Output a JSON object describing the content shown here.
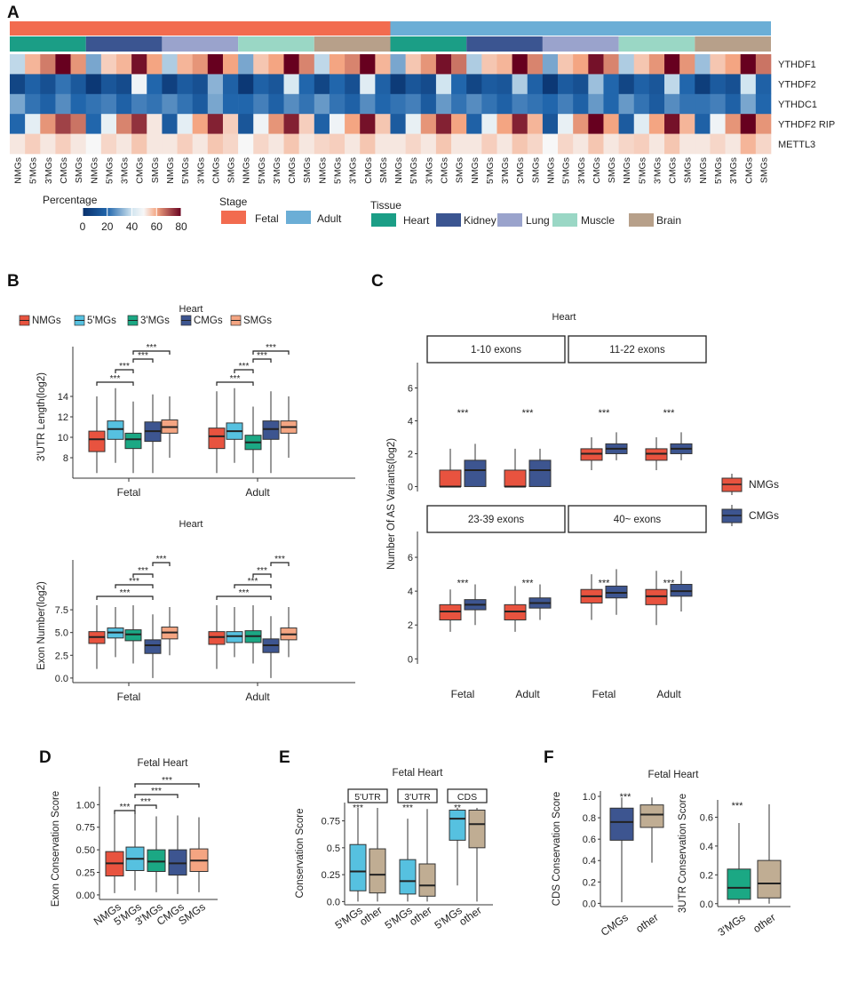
{
  "colors": {
    "fetal": "#f26b4f",
    "adult": "#6baed6",
    "heart": "#1b9e86",
    "kidney": "#3b5591",
    "lung": "#9aa3cc",
    "muscle": "#9ad7c5",
    "brain": "#b7a08a",
    "nmgs": "#e8533f",
    "mg5": "#56c1e0",
    "mg3": "#1ba884",
    "cmgs": "#3d5590",
    "smgs": "#f4a582",
    "other": "#c0ad93",
    "panel_a_label": "#111111"
  },
  "panel_labels": {
    "a": "A",
    "b": "B",
    "c": "C",
    "d": "D",
    "e": "E",
    "f": "F"
  },
  "chart_data": [
    {
      "id": "A",
      "type": "heatmap",
      "row_labels": [
        "YTHDF1",
        "YTHDF2",
        "YTHDC1",
        "YTHDF2 RIP",
        "METTL3"
      ],
      "groups": [
        "NMGs",
        "5'MGs",
        "3'MGs",
        "CMGs",
        "SMGs"
      ],
      "stage_annotation": [
        "Fetal",
        "Adult"
      ],
      "tissue_annotation": [
        "Heart",
        "Kidney",
        "Lung",
        "Muscle",
        "Brain"
      ],
      "column_labels": [
        "NMGs",
        "5'MGs",
        "3'MGs",
        "CMGs",
        "SMGs",
        "NMGs",
        "5'MGs",
        "3'MGs",
        "CMGs",
        "SMGs",
        "NMGs",
        "5'MGs",
        "3'MGs",
        "CMGs",
        "SMGs",
        "NMGs",
        "5'MGs",
        "3'MGs",
        "CMGs",
        "SMGs",
        "NMGs",
        "5'MGs",
        "3'MGs",
        "CMGs",
        "SMGs",
        "NMGs",
        "5'MGs",
        "3'MGs",
        "CMGs",
        "SMGs",
        "NMGs",
        "5'MGs",
        "3'MGs",
        "CMGs",
        "SMGs",
        "NMGs",
        "5'MGs",
        "3'MGs",
        "CMGs",
        "SMGs",
        "NMGs",
        "5'MGs",
        "3'MGs",
        "CMGs",
        "SMGs",
        "NMGs",
        "5'MGs",
        "3'MGs",
        "CMGs",
        "SMGs"
      ],
      "values": [
        [
          38,
          58,
          65,
          80,
          62,
          30,
          55,
          58,
          78,
          60,
          36,
          58,
          62,
          80,
          60,
          30,
          56,
          60,
          80,
          64,
          38,
          60,
          64,
          80,
          58,
          30,
          56,
          62,
          78,
          66,
          36,
          56,
          58,
          80,
          64,
          30,
          56,
          60,
          78,
          64,
          36,
          56,
          62,
          80,
          62,
          34,
          56,
          60,
          80,
          66
        ],
        [
          8,
          18,
          12,
          22,
          15,
          3,
          14,
          10,
          48,
          20,
          6,
          16,
          12,
          32,
          18,
          3,
          18,
          14,
          42,
          20,
          8,
          20,
          12,
          44,
          18,
          4,
          14,
          10,
          40,
          20,
          8,
          16,
          14,
          36,
          18,
          3,
          16,
          12,
          34,
          20,
          8,
          18,
          14,
          38,
          20,
          5,
          16,
          12,
          40,
          18
        ],
        [
          30,
          22,
          18,
          26,
          20,
          22,
          24,
          18,
          24,
          22,
          26,
          22,
          16,
          30,
          20,
          20,
          24,
          18,
          26,
          22,
          28,
          22,
          18,
          26,
          20,
          22,
          24,
          16,
          28,
          22,
          26,
          22,
          18,
          24,
          22,
          20,
          24,
          18,
          28,
          20,
          28,
          22,
          16,
          26,
          22,
          22,
          24,
          18,
          30,
          20
        ],
        [
          20,
          45,
          62,
          72,
          66,
          20,
          46,
          64,
          74,
          52,
          16,
          45,
          60,
          76,
          55,
          14,
          48,
          62,
          76,
          55,
          18,
          48,
          60,
          78,
          56,
          16,
          46,
          62,
          76,
          60,
          18,
          46,
          60,
          76,
          58,
          14,
          46,
          62,
          80,
          60,
          16,
          44,
          60,
          78,
          58,
          18,
          48,
          62,
          80,
          62
        ],
        [
          52,
          55,
          52,
          55,
          52,
          50,
          54,
          52,
          56,
          52,
          52,
          55,
          52,
          56,
          54,
          50,
          54,
          52,
          56,
          52,
          54,
          55,
          52,
          56,
          52,
          52,
          54,
          52,
          56,
          52,
          52,
          55,
          52,
          56,
          54,
          50,
          54,
          52,
          56,
          52,
          54,
          55,
          52,
          56,
          52,
          52,
          54,
          52,
          58,
          54
        ]
      ],
      "legend_percentage": {
        "title": "Percentage",
        "ticks": [
          "0",
          "20",
          "40",
          "60",
          "80"
        ]
      },
      "legend_stage": {
        "title": "Stage",
        "items": [
          "Fetal",
          "Adult"
        ]
      },
      "legend_tissue": {
        "title": "Tissue",
        "items": [
          "Heart",
          "Kidney",
          "Lung",
          "Muscle",
          "Brain"
        ]
      }
    },
    {
      "id": "B1",
      "type": "box",
      "title": "Heart",
      "legend": [
        "NMGs",
        "5'MGs",
        "3'MGs",
        "CMGs",
        "SMGs"
      ],
      "ylabel": "3'UTR Length(log2)",
      "ylim": [
        6,
        18
      ],
      "yticks": [
        "8",
        "10",
        "12",
        "14"
      ],
      "yticks_values": [
        8,
        10,
        12,
        14
      ],
      "categories": [
        "Fetal",
        "Adult"
      ],
      "series": [
        {
          "name": "NMGs",
          "boxes": [
            [
              6.5,
              8.6,
              9.8,
              10.6,
              14.0
            ],
            [
              6.5,
              8.9,
              10.1,
              10.9,
              14.5
            ]
          ]
        },
        {
          "name": "5'MGs",
          "boxes": [
            [
              7.5,
              9.8,
              10.8,
              11.6,
              14.8
            ],
            [
              7.5,
              9.8,
              10.6,
              11.4,
              14.8
            ]
          ]
        },
        {
          "name": "3'MGs",
          "boxes": [
            [
              6.5,
              8.9,
              9.8,
              10.4,
              13.5
            ],
            [
              6.5,
              8.8,
              9.5,
              10.2,
              13.0
            ]
          ]
        },
        {
          "name": "CMGs",
          "boxes": [
            [
              6.5,
              9.6,
              10.6,
              11.5,
              14.2
            ],
            [
              6.5,
              9.8,
              10.8,
              11.6,
              14.5
            ]
          ]
        },
        {
          "name": "SMGs",
          "boxes": [
            [
              8.0,
              10.4,
              11.0,
              11.7,
              14.0
            ],
            [
              8.0,
              10.4,
              11.0,
              11.6,
              14.0
            ]
          ]
        }
      ],
      "significance": [
        "***",
        "***",
        "***",
        "***"
      ]
    },
    {
      "id": "B2",
      "type": "box",
      "title": "Heart",
      "ylabel": "Exon Number(log2)",
      "ylim": [
        -0.5,
        12
      ],
      "yticks": [
        "0.0",
        "2.5",
        "5.0",
        "7.5"
      ],
      "yticks_values": [
        0,
        2.5,
        5,
        7.5
      ],
      "categories": [
        "Fetal",
        "Adult"
      ],
      "series": [
        {
          "name": "NMGs",
          "boxes": [
            [
              1.0,
              3.8,
              4.5,
              5.1,
              8.0
            ],
            [
              1.0,
              3.7,
              4.5,
              5.1,
              8.0
            ]
          ]
        },
        {
          "name": "5'MGs",
          "boxes": [
            [
              2.3,
              4.4,
              5.0,
              5.5,
              7.8
            ],
            [
              2.3,
              3.9,
              4.6,
              5.1,
              7.8
            ]
          ]
        },
        {
          "name": "3'MGs",
          "boxes": [
            [
              1.6,
              4.1,
              4.8,
              5.3,
              8.0
            ],
            [
              1.6,
              3.9,
              4.6,
              5.2,
              8.0
            ]
          ]
        },
        {
          "name": "CMGs",
          "boxes": [
            [
              0.0,
              2.7,
              3.6,
              4.2,
              7.0
            ],
            [
              0.0,
              2.8,
              3.6,
              4.3,
              6.8
            ]
          ]
        },
        {
          "name": "SMGs",
          "boxes": [
            [
              2.5,
              4.3,
              5.0,
              5.6,
              7.8
            ],
            [
              2.3,
              4.2,
              4.8,
              5.5,
              7.8
            ]
          ]
        }
      ],
      "significance": [
        "***",
        "***",
        "***",
        "***"
      ]
    },
    {
      "id": "C",
      "type": "box",
      "title": "Heart",
      "ylabel": "Number Of AS Variants(log2)",
      "ylim": [
        -0.3,
        7
      ],
      "yticks": [
        "0",
        "2",
        "4",
        "6"
      ],
      "yticks_values": [
        0,
        2,
        4,
        6
      ],
      "facets": [
        "1-10 exons",
        "11-22 exons",
        "23-39 exons",
        "40~ exons"
      ],
      "categories": [
        "Fetal",
        "Adult"
      ],
      "legend": [
        "NMGs",
        "CMGs"
      ],
      "significance": "***",
      "data": [
        {
          "facet": "1-10 exons",
          "NMGs": [
            [
              0,
              0,
              0,
              1.0,
              2.3
            ],
            [
              0,
              0,
              0,
              1.0,
              2.3
            ]
          ],
          "CMGs": [
            [
              0,
              0,
              1.0,
              1.6,
              2.6
            ],
            [
              0,
              0,
              1.0,
              1.6,
              2.3
            ]
          ]
        },
        {
          "facet": "11-22 exons",
          "NMGs": [
            [
              1.0,
              1.6,
              2.0,
              2.3,
              3.0
            ],
            [
              1.0,
              1.6,
              2.0,
              2.3,
              3.0
            ]
          ],
          "CMGs": [
            [
              1.6,
              2.0,
              2.3,
              2.6,
              3.3
            ],
            [
              1.6,
              2.0,
              2.3,
              2.6,
              3.3
            ]
          ]
        },
        {
          "facet": "23-39 exons",
          "NMGs": [
            [
              1.6,
              2.3,
              2.8,
              3.2,
              4.1
            ],
            [
              1.6,
              2.3,
              2.8,
              3.2,
              4.3
            ]
          ],
          "CMGs": [
            [
              2.0,
              2.9,
              3.2,
              3.5,
              4.4
            ],
            [
              2.3,
              3.0,
              3.3,
              3.6,
              4.4
            ]
          ]
        },
        {
          "facet": "40~ exons",
          "NMGs": [
            [
              2.3,
              3.3,
              3.7,
              4.1,
              5.0
            ],
            [
              2.0,
              3.2,
              3.7,
              4.1,
              5.2
            ]
          ],
          "CMGs": [
            [
              2.6,
              3.6,
              3.9,
              4.3,
              5.3
            ],
            [
              2.8,
              3.7,
              4.0,
              4.4,
              5.2
            ]
          ]
        }
      ]
    },
    {
      "id": "D",
      "type": "box",
      "title": "Fetal Heart",
      "ylabel": "Exon Conservation Score",
      "ylim": [
        -0.05,
        1.2
      ],
      "yticks": [
        "0.00",
        "0.25",
        "0.50",
        "0.75",
        "1.00"
      ],
      "yticks_values": [
        0,
        0.25,
        0.5,
        0.75,
        1.0
      ],
      "categories": [
        "NMGs",
        "5'MGs",
        "3'MGs",
        "CMGs",
        "SMGs"
      ],
      "boxes": [
        [
          0.02,
          0.21,
          0.35,
          0.48,
          0.9
        ],
        [
          0.05,
          0.27,
          0.4,
          0.53,
          0.96
        ],
        [
          0.03,
          0.26,
          0.37,
          0.5,
          0.87
        ],
        [
          0.01,
          0.22,
          0.35,
          0.5,
          0.88
        ],
        [
          0.03,
          0.26,
          0.38,
          0.51,
          0.86
        ]
      ],
      "significance": [
        "***",
        "***",
        "***",
        "***"
      ]
    },
    {
      "id": "E",
      "type": "box",
      "title": "Fetal Heart",
      "ylabel": "Conservation Score",
      "ylim": [
        -0.03,
        0.92
      ],
      "yticks": [
        "0.0",
        "0.25",
        "0.5",
        "0.75"
      ],
      "yticks_values": [
        0,
        0.25,
        0.5,
        0.75
      ],
      "facets": [
        "5'UTR",
        "3'UTR",
        "CDS"
      ],
      "categories": [
        "5'MGs",
        "other"
      ],
      "significance": [
        "***",
        "***",
        "**"
      ],
      "data": [
        {
          "facet": "5'UTR",
          "boxes": [
            [
              0.0,
              0.1,
              0.28,
              0.53,
              0.87
            ],
            [
              0.0,
              0.08,
              0.25,
              0.49,
              0.87
            ]
          ]
        },
        {
          "facet": "3'UTR",
          "boxes": [
            [
              0.0,
              0.07,
              0.19,
              0.39,
              0.77
            ],
            [
              0.0,
              0.05,
              0.15,
              0.35,
              0.86
            ]
          ]
        },
        {
          "facet": "CDS",
          "boxes": [
            [
              0.15,
              0.57,
              0.77,
              0.85,
              0.87
            ],
            [
              0.0,
              0.5,
              0.72,
              0.85,
              0.87
            ]
          ]
        }
      ]
    },
    {
      "id": "F1",
      "type": "box",
      "title": "Fetal Heart",
      "ylabel": "CDS Conservation Score",
      "ylim": [
        -0.03,
        1.05
      ],
      "yticks": [
        "0.0",
        "0.2",
        "0.4",
        "0.6",
        "0.8",
        "1.0"
      ],
      "yticks_values": [
        0,
        0.2,
        0.4,
        0.6,
        0.8,
        1.0
      ],
      "categories": [
        "CMGs",
        "other"
      ],
      "boxes": [
        [
          0.01,
          0.59,
          0.76,
          0.89,
          0.99
        ],
        [
          0.38,
          0.71,
          0.83,
          0.92,
          0.99
        ]
      ],
      "significance": "***"
    },
    {
      "id": "F2",
      "type": "box",
      "ylabel": "3UTR Conservation Score",
      "ylim": [
        -0.02,
        0.72
      ],
      "yticks": [
        "0.0",
        "0.2",
        "0.4",
        "0.6"
      ],
      "yticks_values": [
        0,
        0.2,
        0.4,
        0.6
      ],
      "categories": [
        "3'MGs",
        "other"
      ],
      "boxes": [
        [
          0.0,
          0.03,
          0.11,
          0.24,
          0.56
        ],
        [
          0.0,
          0.04,
          0.14,
          0.3,
          0.69
        ]
      ],
      "significance": "***"
    }
  ]
}
